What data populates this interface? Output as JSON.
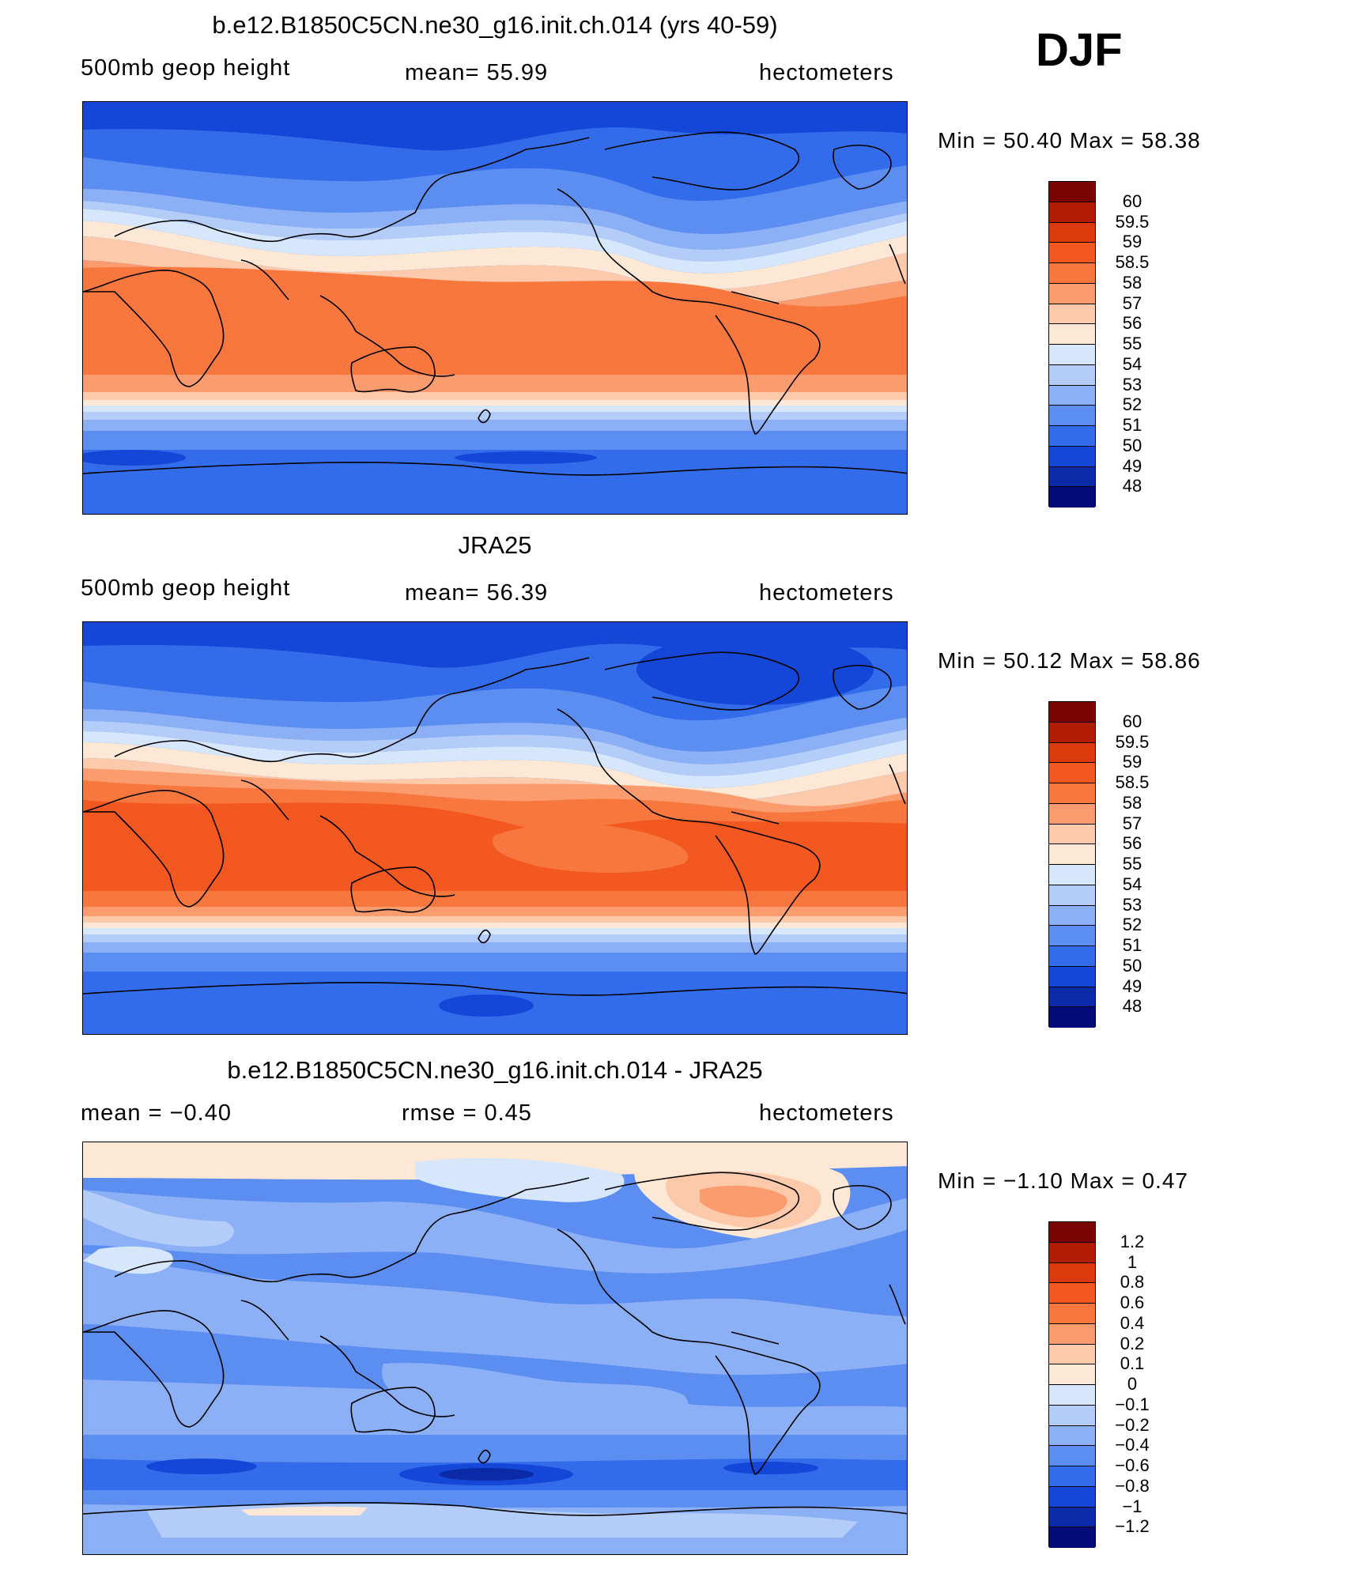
{
  "season": "DJF",
  "panels": [
    {
      "title": "b.e12.B1850C5CN.ne30_g16.init.ch.014 (yrs 40-59)",
      "left_label": "500mb  geop  height",
      "center_label": "mean=   55.99",
      "right_label": "hectometers",
      "minmax": "Min  =    50.40  Max  =    58.38",
      "colorbar_labels": [
        "60",
        "59.5",
        "59",
        "58.5",
        "58",
        "57",
        "56",
        "55",
        "54",
        "53",
        "52",
        "51",
        "50",
        "49",
        "48"
      ]
    },
    {
      "title": "JRA25",
      "left_label": "500mb  geop  height",
      "center_label": "mean=   56.39",
      "right_label": "hectometers",
      "minmax": "Min  =    50.12  Max  =    58.86",
      "colorbar_labels": [
        "60",
        "59.5",
        "59",
        "58.5",
        "58",
        "57",
        "56",
        "55",
        "54",
        "53",
        "52",
        "51",
        "50",
        "49",
        "48"
      ]
    },
    {
      "title": "b.e12.B1850C5CN.ne30_g16.init.ch.014 - JRA25",
      "left_label": "mean  =    −0.40",
      "center_label": "rmse  =     0.45",
      "right_label": "hectometers",
      "minmax": "Min  =   −1.10  Max  =     0.47",
      "colorbar_labels": [
        "1.2",
        "1",
        "0.8",
        "0.6",
        "0.4",
        "0.2",
        "0.1",
        "0",
        "−0.1",
        "−0.2",
        "−0.4",
        "−0.6",
        "−0.8",
        "−1",
        "−1.2"
      ]
    }
  ],
  "colorbar_colors": [
    "#7a0403",
    "#b11c05",
    "#dc3a0c",
    "#f2581f",
    "#f7773e",
    "#fb9c6f",
    "#fdc9ab",
    "#fde8d6",
    "#d6e6fb",
    "#b4ccf8",
    "#8cb0f5",
    "#5c8ef1",
    "#336cea",
    "#1446d8",
    "#0a2aa8",
    "#020b78"
  ],
  "chart_data": [
    {
      "type": "heatmap",
      "title": "b.e12.B1850C5CN.ne30_g16.init.ch.014 (yrs 40-59)",
      "variable": "500mb geop height",
      "units": "hectometers",
      "mean": 55.99,
      "min": 50.4,
      "max": 58.38,
      "levels": [
        48,
        49,
        50,
        51,
        52,
        53,
        54,
        55,
        56,
        57,
        58,
        58.5,
        59,
        59.5,
        60
      ]
    },
    {
      "type": "heatmap",
      "title": "JRA25",
      "variable": "500mb geop height",
      "units": "hectometers",
      "mean": 56.39,
      "min": 50.12,
      "max": 58.86,
      "levels": [
        48,
        49,
        50,
        51,
        52,
        53,
        54,
        55,
        56,
        57,
        58,
        58.5,
        59,
        59.5,
        60
      ]
    },
    {
      "type": "heatmap",
      "title": "b.e12.B1850C5CN.ne30_g16.init.ch.014 - JRA25",
      "variable": "500mb geop height difference",
      "units": "hectometers",
      "mean": -0.4,
      "rmse": 0.45,
      "min": -1.1,
      "max": 0.47,
      "levels": [
        -1.2,
        -1,
        -0.8,
        -0.6,
        -0.4,
        -0.2,
        -0.1,
        0,
        0.1,
        0.2,
        0.4,
        0.6,
        0.8,
        1,
        1.2
      ]
    }
  ]
}
